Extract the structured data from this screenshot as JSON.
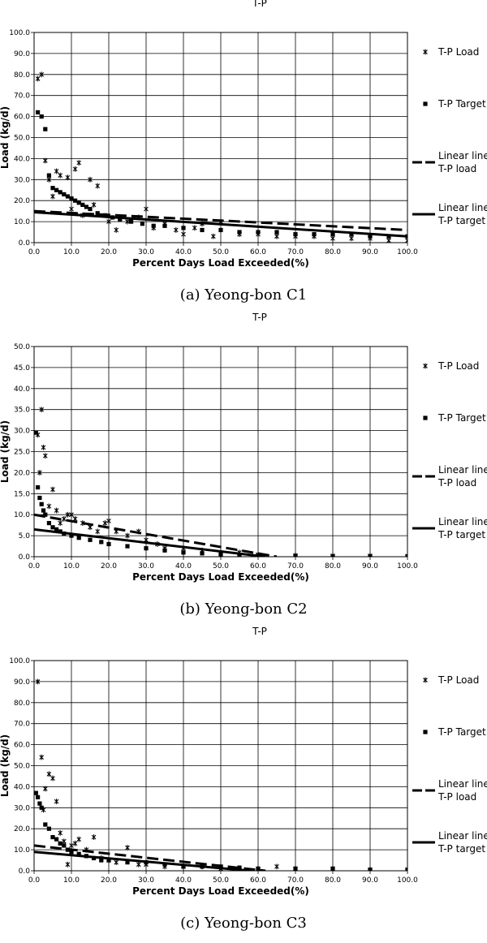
{
  "figures": [
    {
      "caption": "(a)  Yeong-bon  C1"
    },
    {
      "caption": "(b)  Yeong-bon  C2"
    },
    {
      "caption": "(c)  Yeong-bon  C3"
    }
  ],
  "colors": {
    "series": "#000000",
    "grid": "#000000",
    "background": "#ffffff"
  },
  "chart_data": [
    {
      "type": "scatter",
      "title": "T-P",
      "xlabel": "Percent Days Load Exceeded(%)",
      "ylabel": "Load (kg/d)",
      "xlim": [
        0,
        100
      ],
      "ylim": [
        0,
        100
      ],
      "x_ticks": [
        "0.0",
        "10.0",
        "20.0",
        "30.0",
        "40.0",
        "50.0",
        "60.0",
        "70.0",
        "80.0",
        "90.0",
        "100.0"
      ],
      "y_ticks": [
        "0.0",
        "10.0",
        "20.0",
        "30.0",
        "40.0",
        "50.0",
        "60.0",
        "70.0",
        "80.0",
        "90.0",
        "100.0"
      ],
      "grid": true,
      "legend_position": "right",
      "series": [
        {
          "name": "T-P Load",
          "marker": "asterisk",
          "points": [
            [
              1,
              78
            ],
            [
              2,
              80
            ],
            [
              3,
              39
            ],
            [
              4,
              30
            ],
            [
              5,
              22
            ],
            [
              6,
              34
            ],
            [
              7,
              32
            ],
            [
              9,
              31
            ],
            [
              10,
              16
            ],
            [
              11,
              35
            ],
            [
              12,
              38
            ],
            [
              13,
              13
            ],
            [
              15,
              30
            ],
            [
              16,
              18
            ],
            [
              17,
              27
            ],
            [
              20,
              10
            ],
            [
              22,
              6
            ],
            [
              25,
              10
            ],
            [
              28,
              12
            ],
            [
              30,
              16
            ],
            [
              32,
              7
            ],
            [
              35,
              9
            ],
            [
              38,
              6
            ],
            [
              40,
              4
            ],
            [
              43,
              7
            ],
            [
              45,
              9
            ],
            [
              48,
              3
            ],
            [
              50,
              10
            ],
            [
              55,
              4
            ],
            [
              60,
              4
            ],
            [
              65,
              3
            ],
            [
              70,
              3
            ],
            [
              75,
              3
            ],
            [
              80,
              2
            ],
            [
              85,
              2
            ],
            [
              90,
              2
            ],
            [
              95,
              1
            ],
            [
              100,
              1
            ]
          ]
        },
        {
          "name": "T-P Target",
          "marker": "square",
          "points": [
            [
              1,
              62
            ],
            [
              2,
              60
            ],
            [
              3,
              54
            ],
            [
              4,
              32
            ],
            [
              5,
              26
            ],
            [
              6,
              25
            ],
            [
              7,
              24
            ],
            [
              8,
              23
            ],
            [
              9,
              22
            ],
            [
              10,
              21
            ],
            [
              11,
              20
            ],
            [
              12,
              19
            ],
            [
              13,
              18
            ],
            [
              14,
              17
            ],
            [
              15,
              16
            ],
            [
              17,
              14
            ],
            [
              19,
              13
            ],
            [
              21,
              12
            ],
            [
              23,
              11
            ],
            [
              26,
              10
            ],
            [
              29,
              9
            ],
            [
              32,
              8
            ],
            [
              35,
              8
            ],
            [
              40,
              7
            ],
            [
              45,
              6
            ],
            [
              50,
              6
            ],
            [
              55,
              5
            ],
            [
              60,
              5
            ],
            [
              65,
              5
            ],
            [
              70,
              4
            ],
            [
              75,
              4
            ],
            [
              80,
              4
            ],
            [
              85,
              4
            ],
            [
              90,
              3
            ],
            [
              95,
              3
            ],
            [
              100,
              3
            ]
          ]
        },
        {
          "name": "Linear line T-P load",
          "line": "dashed",
          "points": [
            [
              0,
              15
            ],
            [
              100,
              6
            ]
          ]
        },
        {
          "name": "Linear line T-P target",
          "line": "solid",
          "points": [
            [
              0,
              14.5
            ],
            [
              100,
              3
            ]
          ]
        }
      ]
    },
    {
      "type": "scatter",
      "title": "T-P",
      "xlabel": "Percent Days Load Exceeded(%)",
      "ylabel": "Load (kg/d)",
      "xlim": [
        0,
        100
      ],
      "ylim": [
        0,
        50
      ],
      "x_ticks": [
        "0.0",
        "10.0",
        "20.0",
        "30.0",
        "40.0",
        "50.0",
        "60.0",
        "70.0",
        "80.0",
        "90.0",
        "100.0"
      ],
      "y_ticks": [
        "0.0",
        "5.0",
        "10.0",
        "15.0",
        "20.0",
        "25.0",
        "30.0",
        "35.0",
        "40.0",
        "45.0",
        "50.0"
      ],
      "grid": true,
      "legend_position": "right",
      "series": [
        {
          "name": "T-P Load",
          "marker": "asterisk",
          "points": [
            [
              1,
              29
            ],
            [
              1.5,
              20
            ],
            [
              2,
              35
            ],
            [
              2.5,
              26
            ],
            [
              3,
              24
            ],
            [
              4,
              12
            ],
            [
              5,
              16
            ],
            [
              6,
              11
            ],
            [
              7,
              8
            ],
            [
              8,
              9
            ],
            [
              9,
              10
            ],
            [
              10,
              10
            ],
            [
              11,
              9
            ],
            [
              13,
              8
            ],
            [
              15,
              7
            ],
            [
              17,
              6
            ],
            [
              19,
              8
            ],
            [
              20,
              8.5
            ],
            [
              22,
              6
            ],
            [
              25,
              5
            ],
            [
              28,
              6
            ],
            [
              30,
              4
            ],
            [
              33,
              3
            ],
            [
              35,
              2
            ],
            [
              40,
              2
            ],
            [
              45,
              1.5
            ],
            [
              50,
              1
            ],
            [
              55,
              1
            ],
            [
              60,
              0.5
            ],
            [
              70,
              0.3
            ],
            [
              80,
              0.2
            ],
            [
              90,
              0.2
            ],
            [
              100,
              0.1
            ]
          ]
        },
        {
          "name": "T-P Target",
          "marker": "square",
          "points": [
            [
              0.5,
              29.5
            ],
            [
              1,
              16.5
            ],
            [
              1.5,
              14
            ],
            [
              2,
              12.5
            ],
            [
              2.5,
              11
            ],
            [
              3,
              10
            ],
            [
              4,
              8
            ],
            [
              5,
              7
            ],
            [
              6,
              6.5
            ],
            [
              7,
              6
            ],
            [
              8,
              5.5
            ],
            [
              10,
              5
            ],
            [
              12,
              4.5
            ],
            [
              15,
              4
            ],
            [
              18,
              3.5
            ],
            [
              20,
              3
            ],
            [
              25,
              2.5
            ],
            [
              30,
              2
            ],
            [
              35,
              1.5
            ],
            [
              40,
              1
            ],
            [
              45,
              0.8
            ],
            [
              50,
              0.6
            ],
            [
              55,
              0.4
            ],
            [
              60,
              0.3
            ],
            [
              70,
              0.2
            ],
            [
              80,
              0.1
            ],
            [
              90,
              0.1
            ],
            [
              100,
              0.1
            ]
          ]
        },
        {
          "name": "Linear line T-P load",
          "line": "dashed",
          "points": [
            [
              0,
              10
            ],
            [
              65,
              0
            ]
          ]
        },
        {
          "name": "Linear line T-P target",
          "line": "solid",
          "points": [
            [
              0,
              6.5
            ],
            [
              62,
              0
            ]
          ]
        }
      ]
    },
    {
      "type": "scatter",
      "title": "T-P",
      "xlabel": "Percent Days Load Exceeded(%)",
      "ylabel": "Load (kg/d)",
      "xlim": [
        0,
        100
      ],
      "ylim": [
        0,
        100
      ],
      "x_ticks": [
        "0.0",
        "10.0",
        "20.0",
        "30.0",
        "40.0",
        "50.0",
        "60.0",
        "70.0",
        "80.0",
        "90.0",
        "100.0"
      ],
      "y_ticks": [
        "0.0",
        "10.0",
        "20.0",
        "30.0",
        "40.0",
        "50.0",
        "60.0",
        "70.0",
        "80.0",
        "90.0",
        "100.0"
      ],
      "grid": true,
      "legend_position": "right",
      "series": [
        {
          "name": "T-P Load",
          "marker": "asterisk",
          "points": [
            [
              1,
              90
            ],
            [
              2,
              54
            ],
            [
              2.5,
              29
            ],
            [
              3,
              39
            ],
            [
              4,
              46
            ],
            [
              5,
              44
            ],
            [
              6,
              33
            ],
            [
              7,
              18
            ],
            [
              8,
              14
            ],
            [
              9,
              3
            ],
            [
              10,
              12
            ],
            [
              11,
              13
            ],
            [
              12,
              15
            ],
            [
              14,
              10
            ],
            [
              16,
              16
            ],
            [
              18,
              6
            ],
            [
              20,
              5
            ],
            [
              22,
              4
            ],
            [
              25,
              11
            ],
            [
              28,
              3
            ],
            [
              30,
              3
            ],
            [
              35,
              2
            ],
            [
              40,
              2
            ],
            [
              45,
              2
            ],
            [
              50,
              1
            ],
            [
              55,
              1
            ],
            [
              60,
              1
            ],
            [
              65,
              2
            ],
            [
              70,
              1
            ],
            [
              80,
              1
            ],
            [
              90,
              0.5
            ],
            [
              100,
              0.5
            ]
          ]
        },
        {
          "name": "T-P Target",
          "marker": "square",
          "points": [
            [
              0.5,
              37
            ],
            [
              1,
              35
            ],
            [
              1.5,
              32
            ],
            [
              2,
              30
            ],
            [
              3,
              22
            ],
            [
              4,
              20
            ],
            [
              5,
              16
            ],
            [
              6,
              15
            ],
            [
              7,
              13
            ],
            [
              8,
              12
            ],
            [
              9,
              10
            ],
            [
              10,
              9
            ],
            [
              12,
              8
            ],
            [
              14,
              7
            ],
            [
              16,
              6
            ],
            [
              18,
              5
            ],
            [
              20,
              5
            ],
            [
              25,
              4
            ],
            [
              30,
              4
            ],
            [
              35,
              3
            ],
            [
              40,
              2
            ],
            [
              45,
              2
            ],
            [
              50,
              2
            ],
            [
              55,
              1.5
            ],
            [
              60,
              1
            ],
            [
              70,
              1
            ],
            [
              80,
              1
            ],
            [
              90,
              0.5
            ],
            [
              100,
              0.5
            ]
          ]
        },
        {
          "name": "Linear line T-P load",
          "line": "dashed",
          "points": [
            [
              0,
              12
            ],
            [
              62,
              0
            ]
          ]
        },
        {
          "name": "Linear line T-P target",
          "line": "solid",
          "points": [
            [
              0,
              9
            ],
            [
              58,
              0
            ]
          ]
        }
      ]
    }
  ]
}
